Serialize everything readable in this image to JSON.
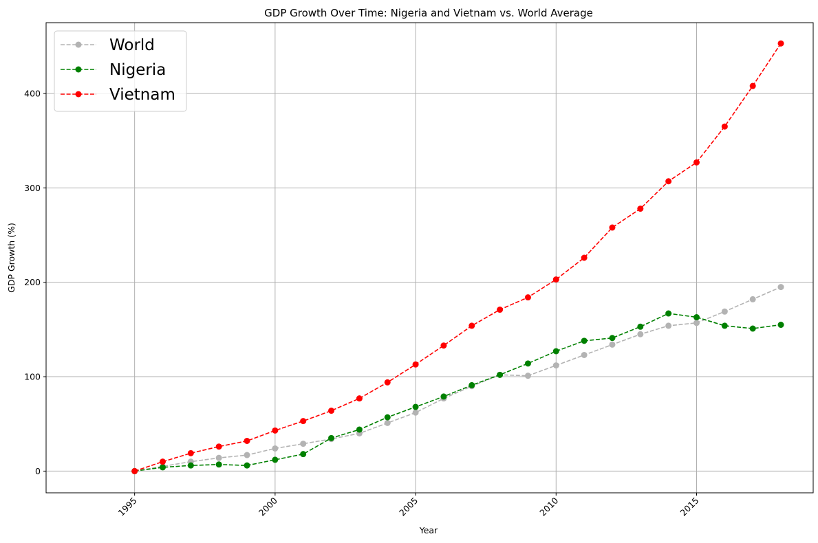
{
  "chart_data": {
    "type": "line",
    "title": "GDP Growth Over Time: Nigeria and Vietnam vs. World Average",
    "xlabel": "Year",
    "ylabel": "GDP Growth (%)",
    "xlim": [
      1991.85,
      2019.15
    ],
    "ylim": [
      -23,
      475
    ],
    "xticks": [
      1995,
      2000,
      2005,
      2010,
      2015
    ],
    "yticks": [
      0,
      100,
      200,
      300,
      400
    ],
    "grid": true,
    "legend_position": "top-left",
    "x": [
      1995,
      1996,
      1997,
      1998,
      1999,
      2000,
      2001,
      2002,
      2003,
      2004,
      2005,
      2006,
      2007,
      2008,
      2009,
      2010,
      2011,
      2012,
      2013,
      2014,
      2015,
      2016,
      2017,
      2018
    ],
    "series": [
      {
        "name": "World",
        "color": "#b3b3b3",
        "style": "dashed",
        "marker": "circle",
        "values": [
          0,
          5,
          10,
          14,
          17,
          24,
          29,
          34,
          40,
          51,
          62,
          77,
          90,
          102,
          101,
          112,
          123,
          134,
          145,
          154,
          157,
          169,
          182,
          195
        ]
      },
      {
        "name": "Nigeria",
        "color": "#008000",
        "style": "dashed",
        "marker": "circle",
        "values": [
          0,
          4,
          6,
          7,
          6,
          12,
          18,
          35,
          44,
          57,
          68,
          79,
          91,
          102,
          114,
          127,
          138,
          141,
          153,
          167,
          163,
          154,
          151,
          155
        ]
      },
      {
        "name": "Vietnam",
        "color": "#ff0000",
        "style": "dashed",
        "marker": "circle",
        "values": [
          0,
          10,
          19,
          26,
          32,
          43,
          53,
          64,
          77,
          94,
          113,
          133,
          154,
          171,
          184,
          203,
          226,
          258,
          278,
          307,
          327,
          365,
          408,
          453
        ]
      }
    ]
  }
}
